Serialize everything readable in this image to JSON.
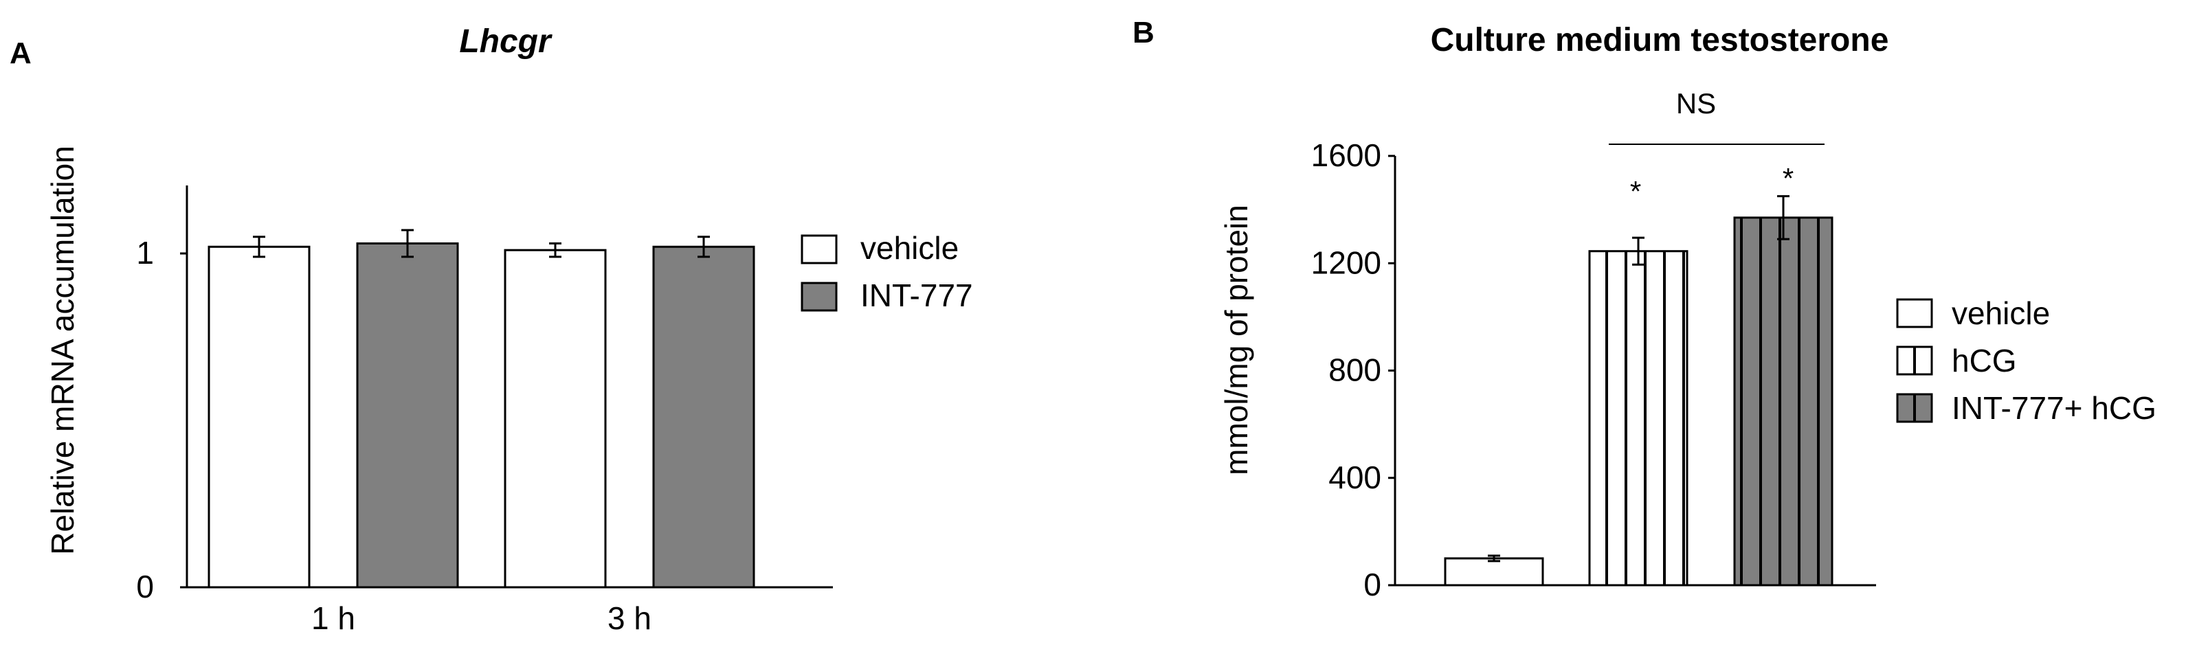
{
  "colors": {
    "vehicle": "#ffffff",
    "int777": "#808080",
    "outline": "#000000"
  },
  "panels": {
    "a": {
      "letter": "A"
    },
    "b": {
      "letter": "B"
    }
  },
  "chart_data": [
    {
      "type": "bar",
      "title": "Lhcgr",
      "xlabel": "",
      "ylabel": "Relative mRNA accumulation",
      "ylim": [
        0,
        1.2
      ],
      "yticks": [
        0,
        1
      ],
      "ytick_labels": [
        "0",
        "1"
      ],
      "categories": [
        "1 h",
        "3 h"
      ],
      "series": [
        {
          "name": "vehicle",
          "fill": "white",
          "values": [
            1.02,
            1.01
          ],
          "errors": [
            0.03,
            0.02
          ]
        },
        {
          "name": "INT-777",
          "fill": "gray",
          "values": [
            1.03,
            1.02
          ],
          "errors": [
            0.04,
            0.03
          ]
        }
      ],
      "legend_position": "right"
    },
    {
      "type": "bar",
      "title": "Culture medium testosterone",
      "xlabel": "",
      "ylabel": "mmol/mg of protein",
      "ylim": [
        0,
        1600
      ],
      "yticks": [
        0,
        400,
        800,
        1200,
        1600
      ],
      "ytick_labels": [
        "0",
        "400",
        "800",
        "1200",
        "1600"
      ],
      "categories": [
        ""
      ],
      "series": [
        {
          "name": "vehicle",
          "fill": "white",
          "values": [
            100
          ],
          "errors": [
            10
          ]
        },
        {
          "name": "hCG",
          "fill": "white-striped",
          "values": [
            1245
          ],
          "errors": [
            50
          ]
        },
        {
          "name": "INT-777+ hCG",
          "fill": "gray-striped",
          "values": [
            1370
          ],
          "errors": [
            80
          ]
        }
      ],
      "annotations": [
        {
          "text": "*",
          "series": "hCG"
        },
        {
          "text": "*",
          "series": "INT-777+ hCG"
        },
        {
          "text": "NS",
          "between": [
            "hCG",
            "INT-777+ hCG"
          ]
        }
      ],
      "legend_position": "right"
    }
  ]
}
